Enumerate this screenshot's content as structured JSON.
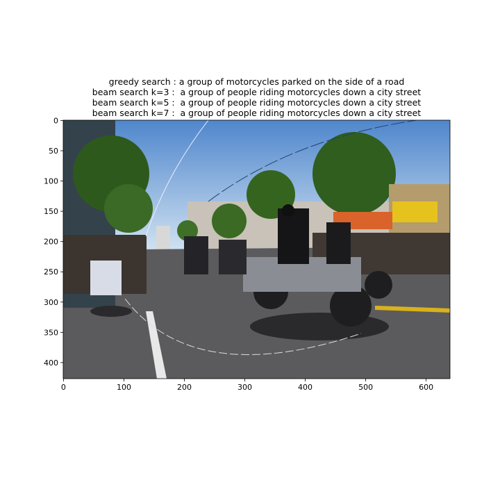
{
  "chart_data": {
    "type": "image",
    "title": [
      "greedy search : a group of motorcycles parked on the side of a road",
      "beam search k=3 :  a group of people riding motorcycles down a city street",
      "beam search k=5 :  a group of people riding motorcycles down a city street",
      "beam search k=7 :  a group of people riding motorcycles down a city street"
    ],
    "xlim": [
      -0.5,
      639.5
    ],
    "ylim": [
      426.5,
      -0.5
    ],
    "xticks": [
      0,
      100,
      200,
      300,
      400,
      500,
      600
    ],
    "yticks": [
      0,
      50,
      100,
      150,
      200,
      250,
      300,
      350,
      400
    ]
  }
}
